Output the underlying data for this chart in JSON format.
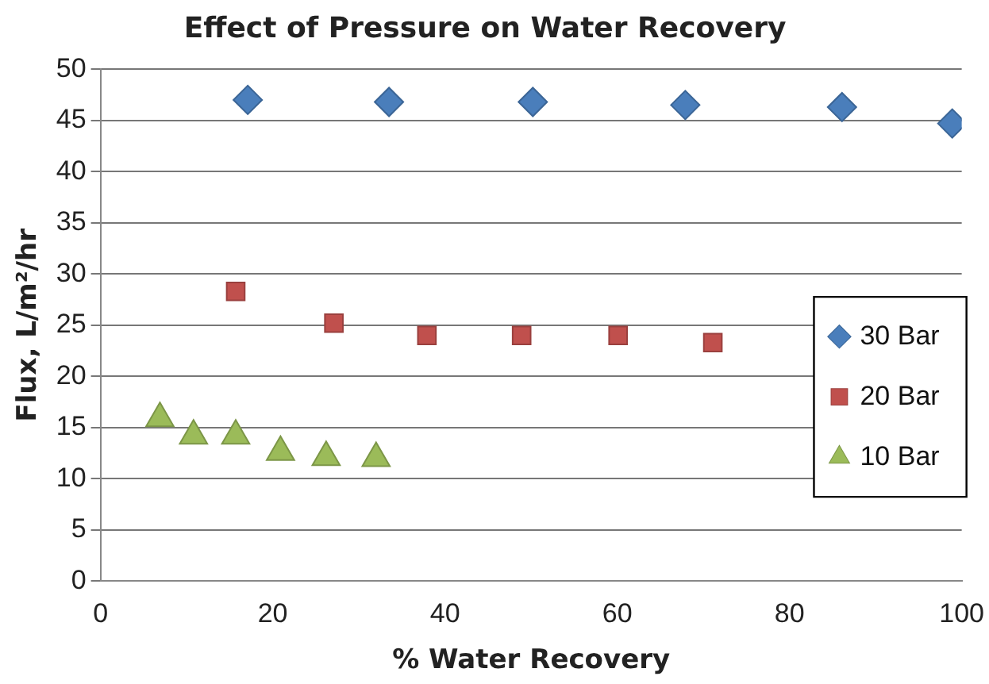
{
  "chart_data": {
    "type": "scatter",
    "title": "Effect of Pressure on Water Recovery",
    "xlabel": "% Water Recovery",
    "ylabel": "Flux, L/m²/hr",
    "xlim": [
      0,
      100
    ],
    "xticks": [
      0,
      20,
      40,
      60,
      80,
      100
    ],
    "ylim": [
      0,
      50
    ],
    "yticks": [
      0,
      5,
      10,
      15,
      20,
      25,
      30,
      35,
      40,
      45,
      50
    ],
    "grid": "y",
    "legend": "right",
    "series": [
      {
        "name": "30 Bar",
        "color": "#4a7ebb",
        "marker": "diamond",
        "x": [
          17.1,
          33.5,
          50.2,
          67.9,
          86.1,
          98.9
        ],
        "values": [
          47,
          46.8,
          46.8,
          46.5,
          46.3,
          44.7
        ]
      },
      {
        "name": "20 Bar",
        "color": "#c0504d",
        "marker": "square",
        "x": [
          15.7,
          27.1,
          37.9,
          48.9,
          60.1,
          71.1
        ],
        "values": [
          28.3,
          25.2,
          24,
          24,
          24,
          23.3
        ]
      },
      {
        "name": "10 Bar",
        "color": "#9bbb59",
        "marker": "triangle",
        "x": [
          6.9,
          10.8,
          15.7,
          20.9,
          26.2,
          32
        ],
        "values": [
          15.9,
          14.2,
          14.2,
          12.6,
          12.1,
          12
        ]
      }
    ]
  }
}
